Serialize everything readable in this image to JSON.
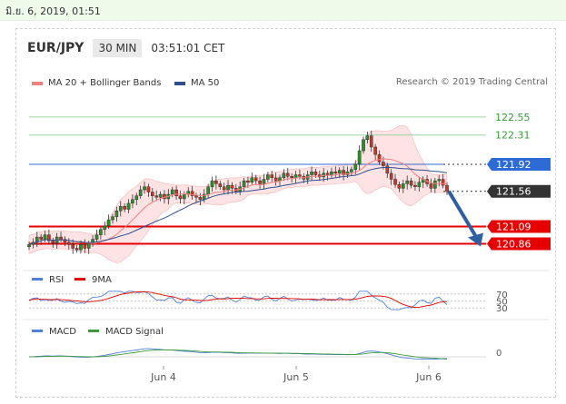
{
  "timestamp": "มิ.ย. 6, 2019, 01:51",
  "header": {
    "symbol": "EUR/JPY",
    "interval": "30 MIN",
    "time": "03:51:01 CET"
  },
  "legend": [
    {
      "label": "MA 20 + Bollinger Bands",
      "color": "#f08080"
    },
    {
      "label": "MA 50",
      "color": "#2f4f8f"
    }
  ],
  "research": "Research © 2019 Trading Central",
  "colors": {
    "resistance_green": "#9fd49f",
    "support_red": "#e60000",
    "pivot_blue": "#2f6bd6",
    "current_dark": "#333333",
    "forecast_arrow": "#2f5f9f",
    "bollinger_fill": "#fde3e3",
    "candle_up": "#2e8b2e",
    "candle_down": "#c0392b"
  },
  "chart_data": [
    {
      "type": "candlestick",
      "title": "EUR/JPY",
      "x_ticks": [
        "Jun 4",
        "Jun 5",
        "Jun 6"
      ],
      "levels": [
        {
          "label": "122.55",
          "value": 122.55,
          "kind": "resistance"
        },
        {
          "label": "122.31",
          "value": 122.31,
          "kind": "resistance"
        },
        {
          "label": "121.92",
          "value": 121.92,
          "kind": "pivot"
        },
        {
          "label": "121.56",
          "value": 121.56,
          "kind": "current"
        },
        {
          "label": "121.09",
          "value": 121.09,
          "kind": "support"
        },
        {
          "label": "120.86",
          "value": 120.86,
          "kind": "support"
        }
      ],
      "ylim": [
        120.6,
        122.9
      ],
      "close": [
        120.85,
        120.88,
        120.95,
        120.92,
        120.98,
        120.9,
        120.87,
        120.95,
        120.92,
        120.88,
        120.85,
        120.8,
        120.78,
        120.85,
        120.8,
        120.86,
        120.92,
        120.98,
        121.05,
        121.1,
        121.18,
        121.22,
        121.3,
        121.36,
        121.32,
        121.4,
        121.45,
        121.5,
        121.58,
        121.62,
        121.55,
        121.5,
        121.48,
        121.52,
        121.46,
        121.52,
        121.58,
        121.5,
        121.46,
        121.52,
        121.56,
        121.5,
        121.48,
        121.45,
        121.52,
        121.62,
        121.7,
        121.66,
        121.62,
        121.58,
        121.64,
        121.6,
        121.56,
        121.62,
        121.7,
        121.68,
        121.74,
        121.7,
        121.66,
        121.72,
        121.78,
        121.74,
        121.7,
        121.74,
        121.8,
        121.76,
        121.74,
        121.78,
        121.76,
        121.72,
        121.78,
        121.82,
        121.78,
        121.75,
        121.8,
        121.78,
        121.82,
        121.8,
        121.84,
        121.78,
        121.82,
        121.85,
        121.92,
        122.1,
        122.25,
        122.3,
        122.15,
        122.05,
        121.95,
        121.9,
        121.8,
        121.72,
        121.65,
        121.6,
        121.66,
        121.7,
        121.64,
        121.62,
        121.68,
        121.72,
        121.66,
        121.6,
        121.7,
        121.72,
        121.64,
        121.56
      ],
      "rsi": {
        "labels": [
          "RSI",
          "9MA"
        ],
        "levels": [
          "70",
          "50",
          "30"
        ],
        "colors": [
          "#4f7fd6",
          "#e60000"
        ]
      },
      "macd": {
        "labels": [
          "MACD",
          "MACD Signal"
        ],
        "level": "0",
        "colors": [
          "#4f7fd6",
          "#3c9a3c"
        ]
      }
    }
  ]
}
